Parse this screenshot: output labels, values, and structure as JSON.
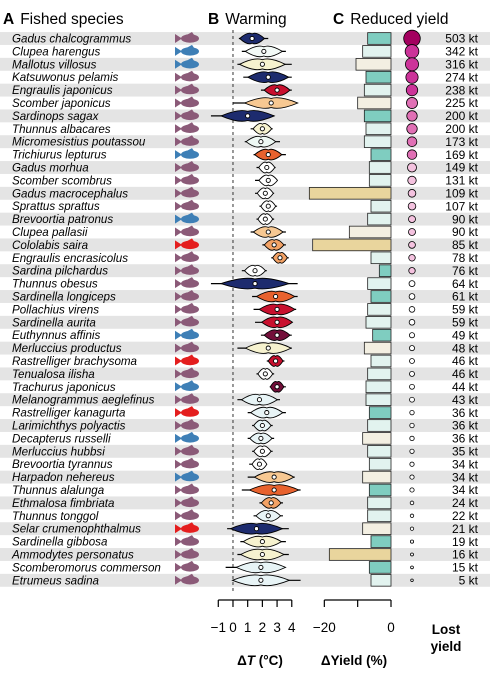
{
  "panels": {
    "a": {
      "letter": "A",
      "title": "Fished species"
    },
    "b": {
      "letter": "B",
      "title": "Warming"
    },
    "c": {
      "letter": "C",
      "title": "Reduced yield"
    }
  },
  "axes": {
    "warming": {
      "ticks": [
        "−1",
        "0",
        "1",
        "2",
        "3",
        "4"
      ],
      "tick_values": [
        -1,
        0,
        1,
        2,
        3,
        4
      ],
      "xlim": [
        -1.7,
        4.9
      ],
      "label_prefix": "Δ",
      "label_var": "T",
      "label_unit": " (°C)"
    },
    "yield": {
      "ticks": [
        "−20",
        "0"
      ],
      "tick_values": [
        -20,
        -10,
        0
      ],
      "xlim": [
        -25.5,
        0
      ],
      "label": "ΔYield (%)"
    },
    "lost": {
      "label_line1": "Lost",
      "label_line2": "yield"
    }
  },
  "colors": {
    "row_shade": "#e4e4e4",
    "fish_default": "#8b5a78",
    "fish_blue": "#3e7fb6",
    "fish_red": "#e41e1e",
    "bar_teal": "#7fcdc0",
    "bar_pale": "#e2f3ef",
    "bar_cream": "#f3efe2",
    "bar_tan": "#e9d59d",
    "dot_scale": [
      "#ffffff",
      "#f4c2df",
      "#e070b5",
      "#cc3399",
      "#a3005f"
    ]
  },
  "chart_data": {
    "type": "violin_bar_bubble",
    "species": [
      {
        "name": "Gadus chalcogrammus",
        "fish": "default",
        "dt": 1.3,
        "lo": 0.4,
        "hi": 2.4,
        "color": "#1d2b6e",
        "dy": -7.0,
        "bar": "teal",
        "lost": "503 kt",
        "lost_kt": 503
      },
      {
        "name": "Clupea harengus",
        "fish": "blue",
        "dt": 2.1,
        "lo": 0.6,
        "hi": 3.6,
        "color": "#f3faf7",
        "dy": -8.5,
        "bar": "pale",
        "lost": "342 kt",
        "lost_kt": 342
      },
      {
        "name": "Mallotus villosus",
        "fish": "blue",
        "dt": 2.0,
        "lo": 0.3,
        "hi": 4.0,
        "color": "#f6f2cf",
        "dy": -10.5,
        "bar": "cream",
        "lost": "316 kt",
        "lost_kt": 316
      },
      {
        "name": "Katsuwonus pelamis",
        "fish": "default",
        "dt": 2.4,
        "lo": 0.7,
        "hi": 4.0,
        "color": "#1d2b6e",
        "dy": -7.5,
        "bar": "teal",
        "lost": "274 kt",
        "lost_kt": 274
      },
      {
        "name": "Engraulis japonicus",
        "fish": "default",
        "dt": 3.0,
        "lo": 1.9,
        "hi": 4.0,
        "color": "#c8102e",
        "dy": -8.0,
        "bar": "pale",
        "lost": "238 kt",
        "lost_kt": 238
      },
      {
        "name": "Scomber japonicus",
        "fish": "default",
        "dt": 2.6,
        "lo": 0.0,
        "hi": 4.3,
        "color": "#f7c892",
        "dy": -10.0,
        "bar": "cream",
        "lost": "225 kt",
        "lost_kt": 225
      },
      {
        "name": "Sardinops sagax",
        "fish": "default",
        "dt": 1.0,
        "lo": -1.5,
        "hi": 2.8,
        "color": "#1d2b6e",
        "dy": -8.0,
        "bar": "teal",
        "lost": "200 kt",
        "lost_kt": 200
      },
      {
        "name": "Thunnus albacares",
        "fish": "default",
        "dt": 2.0,
        "lo": 1.2,
        "hi": 2.7,
        "color": "#f6f2cf",
        "dy": -7.5,
        "bar": "pale",
        "lost": "200 kt",
        "lost_kt": 200
      },
      {
        "name": "Micromesistius poutassou",
        "fish": "default",
        "dt": 1.9,
        "lo": 0.8,
        "hi": 3.2,
        "color": "#eef8f4",
        "dy": -8.0,
        "bar": "pale",
        "lost": "173 kt",
        "lost_kt": 173
      },
      {
        "name": "Trichiurus lepturus",
        "fish": "blue",
        "dt": 2.4,
        "lo": 1.4,
        "hi": 3.6,
        "color": "#e8622e",
        "dy": -6.0,
        "bar": "teal",
        "lost": "169 kt",
        "lost_kt": 169
      },
      {
        "name": "Gadus morhua",
        "fish": "default",
        "dt": 2.3,
        "lo": 1.6,
        "hi": 2.9,
        "color": "#ffffff",
        "dy": -6.5,
        "bar": "pale",
        "lost": "149 kt",
        "lost_kt": 149
      },
      {
        "name": "Scomber scombrus",
        "fish": "default",
        "dt": 2.4,
        "lo": 1.5,
        "hi": 3.0,
        "color": "#ffffff",
        "dy": -6.5,
        "bar": "pale",
        "lost": "131 kt",
        "lost_kt": 131
      },
      {
        "name": "Gadus macrocephalus",
        "fish": "default",
        "dt": 2.2,
        "lo": 1.5,
        "hi": 2.8,
        "color": "#ffffff",
        "dy": -24.5,
        "bar": "tan",
        "lost": "109 kt",
        "lost_kt": 109
      },
      {
        "name": "Sprattus sprattus",
        "fish": "default",
        "dt": 2.4,
        "lo": 1.8,
        "hi": 3.0,
        "color": "#ffffff",
        "dy": -6.0,
        "bar": "pale",
        "lost": "107 kt",
        "lost_kt": 107
      },
      {
        "name": "Brevoortia patronus",
        "fish": "blue",
        "dt": 2.2,
        "lo": 1.6,
        "hi": 2.8,
        "color": "#ffffff",
        "dy": -7.0,
        "bar": "pale",
        "lost": "90 kt",
        "lost_kt": 90
      },
      {
        "name": "Clupea pallasii",
        "fish": "default",
        "dt": 2.4,
        "lo": 1.2,
        "hi": 3.6,
        "color": "#f7c892",
        "dy": -12.5,
        "bar": "cream",
        "lost": "90 kt",
        "lost_kt": 90
      },
      {
        "name": "Cololabis saira",
        "fish": "red",
        "dt": 2.8,
        "lo": 2.0,
        "hi": 3.6,
        "color": "#f3a265",
        "dy": -23.5,
        "bar": "tan",
        "lost": "85 kt",
        "lost_kt": 85
      },
      {
        "name": "Engraulis encrasicolus",
        "fish": "default",
        "dt": 3.2,
        "lo": 2.6,
        "hi": 3.8,
        "color": "#f3a265",
        "dy": -6.0,
        "bar": "pale",
        "lost": "78 kt",
        "lost_kt": 78
      },
      {
        "name": "Sardina pilchardus",
        "fish": "default",
        "dt": 1.5,
        "lo": 0.6,
        "hi": 2.3,
        "color": "#ffffff",
        "dy": -3.5,
        "bar": "teal",
        "lost": "76 kt",
        "lost_kt": 76
      },
      {
        "name": "Thunnus obesus",
        "fish": "default",
        "dt": 1.5,
        "lo": -1.5,
        "hi": 4.4,
        "color": "#1d2b6e",
        "dy": -7.0,
        "bar": "pale",
        "lost": "64 kt",
        "lost_kt": 64
      },
      {
        "name": "Sardinella longiceps",
        "fish": "default",
        "dt": 2.9,
        "lo": 1.3,
        "hi": 4.4,
        "color": "#e8622e",
        "dy": -6.0,
        "bar": "teal",
        "lost": "61 kt",
        "lost_kt": 61
      },
      {
        "name": "Pollachius virens",
        "fish": "default",
        "dt": 3.0,
        "lo": 1.4,
        "hi": 4.3,
        "color": "#c8102e",
        "dy": -7.0,
        "bar": "pale",
        "lost": "59 kt",
        "lost_kt": 59
      },
      {
        "name": "Sardinella aurita",
        "fish": "default",
        "dt": 3.0,
        "lo": 1.5,
        "hi": 4.0,
        "color": "#c8102e",
        "dy": -7.5,
        "bar": "pale",
        "lost": "59 kt",
        "lost_kt": 59
      },
      {
        "name": "Euthynnus affinis",
        "fish": "blue",
        "dt": 3.0,
        "lo": 1.9,
        "hi": 4.0,
        "color": "#730f3a",
        "dy": -5.5,
        "bar": "teal",
        "lost": "49 kt",
        "lost_kt": 49
      },
      {
        "name": "Merluccius productus",
        "fish": "default",
        "dt": 2.4,
        "lo": 0.3,
        "hi": 4.0,
        "color": "#f6f2cf",
        "dy": -8.0,
        "bar": "cream",
        "lost": "48 kt",
        "lost_kt": 48
      },
      {
        "name": "Rastrelliger brachysoma",
        "fish": "red",
        "dt": 2.9,
        "lo": 2.3,
        "hi": 3.5,
        "color": "#c8102e",
        "dy": -6.0,
        "bar": "pale",
        "lost": "46 kt",
        "lost_kt": 46
      },
      {
        "name": "Tenualosa ilisha",
        "fish": "default",
        "dt": 2.2,
        "lo": 1.6,
        "hi": 2.8,
        "color": "#ffffff",
        "dy": -7.0,
        "bar": "pale",
        "lost": "46 kt",
        "lost_kt": 46
      },
      {
        "name": "Trachurus japonicus",
        "fish": "blue",
        "dt": 3.0,
        "lo": 2.5,
        "hi": 3.6,
        "color": "#730f3a",
        "dy": -7.5,
        "bar": "pale",
        "lost": "44 kt",
        "lost_kt": 44
      },
      {
        "name": "Melanogrammus aeglefinus",
        "fish": "default",
        "dt": 1.8,
        "lo": 0.3,
        "hi": 3.2,
        "color": "#e8f4f6",
        "dy": -7.5,
        "bar": "pale",
        "lost": "43 kt",
        "lost_kt": 43
      },
      {
        "name": "Rastrelliger kanagurta",
        "fish": "red",
        "dt": 2.3,
        "lo": 1.0,
        "hi": 3.6,
        "color": "#e8f4f6",
        "dy": -6.5,
        "bar": "teal",
        "lost": "36 kt",
        "lost_kt": 36
      },
      {
        "name": "Larimichthys polyactis",
        "fish": "default",
        "dt": 2.0,
        "lo": 1.3,
        "hi": 2.7,
        "color": "#e8f4f6",
        "dy": -7.0,
        "bar": "pale",
        "lost": "36 kt",
        "lost_kt": 36
      },
      {
        "name": "Decapterus russelli",
        "fish": "blue",
        "dt": 1.9,
        "lo": 1.0,
        "hi": 2.8,
        "color": "#e8f4f6",
        "dy": -8.5,
        "bar": "cream",
        "lost": "36 kt",
        "lost_kt": 36
      },
      {
        "name": "Merluccius hubbsi",
        "fish": "default",
        "dt": 2.0,
        "lo": 1.3,
        "hi": 2.7,
        "color": "#ffffff",
        "dy": -7.0,
        "bar": "pale",
        "lost": "35 kt",
        "lost_kt": 35
      },
      {
        "name": "Brevoortia tyrannus",
        "fish": "default",
        "dt": 1.8,
        "lo": 1.1,
        "hi": 2.3,
        "color": "#ffffff",
        "dy": -6.5,
        "bar": "pale",
        "lost": "34 kt",
        "lost_kt": 34
      },
      {
        "name": "Harpadon nehereus",
        "fish": "blue",
        "dt": 2.8,
        "lo": 1.0,
        "hi": 4.2,
        "color": "#f7c892",
        "dy": -8.5,
        "bar": "cream",
        "lost": "34 kt",
        "lost_kt": 34
      },
      {
        "name": "Thunnus alalunga",
        "fish": "default",
        "dt": 2.8,
        "lo": 0.6,
        "hi": 4.6,
        "color": "#e8622e",
        "dy": -6.5,
        "bar": "teal",
        "lost": "34 kt",
        "lost_kt": 34
      },
      {
        "name": "Ethmalosa fimbriata",
        "fish": "default",
        "dt": 2.6,
        "lo": 1.8,
        "hi": 3.4,
        "color": "#f3a265",
        "dy": -7.0,
        "bar": "pale",
        "lost": "24 kt",
        "lost_kt": 24
      },
      {
        "name": "Thunnus tonggol",
        "fish": "default",
        "dt": 2.4,
        "lo": 1.4,
        "hi": 3.4,
        "color": "#e8f4f6",
        "dy": -7.0,
        "bar": "pale",
        "lost": "22 kt",
        "lost_kt": 22
      },
      {
        "name": "Selar crumenophthalmus",
        "fish": "red",
        "dt": 1.6,
        "lo": -0.4,
        "hi": 3.8,
        "color": "#1d2b6e",
        "dy": -8.5,
        "bar": "cream",
        "lost": "21 kt",
        "lost_kt": 21
      },
      {
        "name": "Sardinella gibbosa",
        "fish": "default",
        "dt": 2.0,
        "lo": 0.5,
        "hi": 3.6,
        "color": "#f6f2cf",
        "dy": -6.0,
        "bar": "teal",
        "lost": "19 kt",
        "lost_kt": 19
      },
      {
        "name": "Ammodytes personatus",
        "fish": "default",
        "dt": 2.0,
        "lo": 0.3,
        "hi": 3.8,
        "color": "#f6f2cf",
        "dy": -18.5,
        "bar": "tan",
        "lost": "16 kt",
        "lost_kt": 16
      },
      {
        "name": "Scomberomorus commerson",
        "fish": "default",
        "dt": 1.9,
        "lo": -0.5,
        "hi": 3.5,
        "color": "#e8f4f6",
        "dy": -6.5,
        "bar": "teal",
        "lost": "15 kt",
        "lost_kt": 15
      },
      {
        "name": "Etrumeus sadina",
        "fish": "default",
        "dt": 1.9,
        "lo": 0.0,
        "hi": 4.6,
        "color": "#e8f4f6",
        "dy": -6.0,
        "bar": "pale",
        "lost": "5 kt",
        "lost_kt": 5
      }
    ]
  }
}
